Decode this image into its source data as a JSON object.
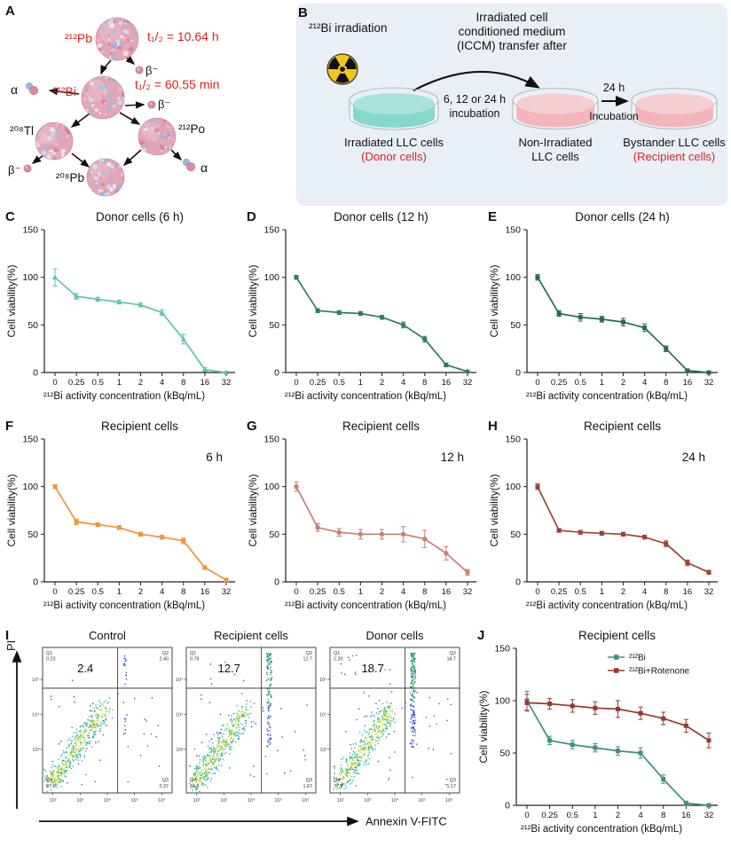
{
  "panelA": {
    "label": "A",
    "pb212": "²¹²Pb",
    "pb212_half_life": "t₁/₂ = 10.64 h",
    "bi212": "²¹²Bi",
    "bi212_half_life": "t₁/₂ = 60.55 min",
    "tl208": "²⁰⁸Tl",
    "po212": "²¹²Po",
    "pb208": "²⁰⁸Pb",
    "alpha": "α",
    "beta": "β⁻"
  },
  "panelB": {
    "label": "B",
    "irradiation_label": "²¹²Bi irradiation",
    "transfer_line1": "Irradiated cell",
    "transfer_line2": "conditioned medium",
    "transfer_line3": "(ICCM) transfer after",
    "incubation_line1": "6, 12 or 24 h",
    "incubation_line2": "incubation",
    "arrow2_label_top": "24 h",
    "arrow2_label_bottom": "Incubation",
    "dish1_caption": "Irradiated LLC cells",
    "dish1_subcaption": "(Donor cells)",
    "dish2_caption": "Non-Irradiated",
    "dish2_subcaption": "LLC cells",
    "dish3_caption": "Bystander LLC cells",
    "dish3_subcaption": "(Recipient cells)",
    "caption_accent_color": "#e31e1e"
  },
  "chart_data": [
    {
      "panel": "C",
      "type": "line",
      "title": "Donor cells (6 h)",
      "color": "#5cc6ae",
      "marker": "triangle",
      "categories": [
        "0",
        "0.25",
        "0.5",
        "1",
        "2",
        "4",
        "8",
        "16",
        "32"
      ],
      "values": [
        100,
        80,
        77,
        74,
        71,
        63,
        35,
        3,
        0
      ],
      "errors": [
        9,
        3,
        2,
        2,
        2,
        3,
        5,
        2,
        1
      ],
      "xlabel": "²¹²Bi activity concentration (kBq/mL)",
      "ylabel": "Cell viability(%)",
      "ylim": [
        0,
        150
      ],
      "yticks": [
        0,
        50,
        100,
        150
      ]
    },
    {
      "panel": "D",
      "type": "line",
      "title": "Donor cells (12 h)",
      "color": "#2e7d5c",
      "marker": "circle",
      "categories": [
        "0",
        "0.25",
        "0.5",
        "1",
        "2",
        "4",
        "8",
        "16",
        "32"
      ],
      "values": [
        100,
        65,
        63,
        62,
        58,
        50,
        35,
        8,
        1
      ],
      "errors": [
        2,
        2,
        2,
        2,
        2,
        3,
        3,
        2,
        1
      ],
      "xlabel": "²¹²Bi activity concentration (kBq/mL)",
      "ylabel": "Cell viability(%)",
      "ylim": [
        0,
        150
      ],
      "yticks": [
        0,
        50,
        100,
        150
      ]
    },
    {
      "panel": "E",
      "type": "line",
      "title": "Donor cells (24 h)",
      "color": "#256b4e",
      "marker": "square",
      "categories": [
        "0",
        "0.25",
        "0.5",
        "1",
        "2",
        "4",
        "8",
        "16",
        "32"
      ],
      "values": [
        100,
        62,
        58,
        56,
        53,
        47,
        25,
        2,
        0
      ],
      "errors": [
        3,
        3,
        4,
        3,
        4,
        4,
        3,
        1,
        1
      ],
      "xlabel": "²¹²Bi activity concentration (kBq/mL)",
      "ylabel": "Cell viability(%)",
      "ylim": [
        0,
        150
      ],
      "yticks": [
        0,
        50,
        100,
        150
      ]
    },
    {
      "panel": "F",
      "type": "line",
      "title": "Recipient cells",
      "annotation": "6 h",
      "color": "#f0953c",
      "marker": "square",
      "categories": [
        "0",
        "0.25",
        "0.5",
        "1",
        "2",
        "4",
        "8",
        "16",
        "32"
      ],
      "values": [
        100,
        63,
        60,
        57,
        50,
        47,
        43,
        15,
        2
      ],
      "errors": [
        2,
        3,
        2,
        2,
        2,
        2,
        3,
        2,
        1
      ],
      "xlabel": "²¹²Bi activity concentration (kBq/mL)",
      "ylabel": "Cell viability(%)",
      "ylim": [
        0,
        150
      ],
      "yticks": [
        0,
        50,
        100,
        150
      ]
    },
    {
      "panel": "G",
      "type": "line",
      "title": "Recipient cells",
      "annotation": "12 h",
      "color": "#c87f73",
      "marker": "circle",
      "categories": [
        "0",
        "0.25",
        "0.5",
        "1",
        "2",
        "4",
        "8",
        "16",
        "32"
      ],
      "values": [
        100,
        57,
        52,
        50,
        50,
        50,
        45,
        30,
        10
      ],
      "errors": [
        5,
        4,
        4,
        5,
        5,
        8,
        9,
        7,
        3
      ],
      "xlabel": "²¹²Bi activity concentration (kBq/mL)",
      "ylabel": "Cell viability(%)",
      "ylim": [
        0,
        150
      ],
      "yticks": [
        0,
        50,
        100,
        150
      ]
    },
    {
      "panel": "H",
      "type": "line",
      "title": "Recipient cells",
      "annotation": "24 h",
      "color": "#9e4338",
      "marker": "square",
      "categories": [
        "0",
        "0.25",
        "0.5",
        "1",
        "2",
        "4",
        "8",
        "16",
        "32"
      ],
      "values": [
        100,
        54,
        52,
        51,
        50,
        47,
        40,
        20,
        10
      ],
      "errors": [
        3,
        2,
        2,
        2,
        2,
        2,
        3,
        3,
        2
      ],
      "xlabel": "²¹²Bi activity concentration (kBq/mL)",
      "ylabel": "Cell viability(%)",
      "ylim": [
        0,
        150
      ],
      "yticks": [
        0,
        50,
        100,
        150
      ]
    },
    {
      "panel": "J",
      "type": "line",
      "title": "Recipient cells",
      "categories": [
        "0",
        "0.25",
        "0.5",
        "1",
        "2",
        "4",
        "8",
        "16",
        "32"
      ],
      "series": [
        {
          "name": "²¹²Bi",
          "color": "#418f7e",
          "marker": "square",
          "values": [
            100,
            62,
            58,
            55,
            52,
            50,
            25,
            2,
            0
          ],
          "errors": [
            9,
            4,
            4,
            4,
            4,
            5,
            4,
            2,
            1
          ]
        },
        {
          "name": "²¹²Bi+Rotenone",
          "color": "#963a30",
          "marker": "square",
          "values": [
            98,
            97,
            95,
            93,
            92,
            88,
            83,
            76,
            62
          ],
          "errors": [
            8,
            5,
            6,
            6,
            8,
            6,
            6,
            6,
            7
          ]
        }
      ],
      "xlabel": "²¹²Bi activity concentration (kBq/mL)",
      "ylabel": "Cell viability(%)",
      "ylim": [
        0,
        150
      ],
      "yticks": [
        0,
        50,
        100,
        150
      ]
    }
  ],
  "flow": {
    "label": "I",
    "ylabel": "PI",
    "xlabel": "Annexin V-FITC",
    "x_ticks": [
      "10²",
      "10³",
      "10⁴",
      "10⁵",
      "10⁶"
    ],
    "y_ticks": [
      "10⁵",
      "10⁴",
      "10³"
    ],
    "quadrant_names": [
      "Q1",
      "Q2",
      "Q3",
      "Q4"
    ],
    "plots": [
      {
        "title": "Control",
        "apoptosis_value": "2.4",
        "q1": "0.23",
        "q2": "2.40",
        "q3": "0.37",
        "q4": "97.0"
      },
      {
        "title": "Recipient cells",
        "apoptosis_value": "12.7",
        "q1": "0.78",
        "q2": "12.7",
        "q3": "1.67",
        "q4": "84.8"
      },
      {
        "title": "Donor cells",
        "apoptosis_value": "18.7",
        "q1": "2.20",
        "q2": "18.7",
        "q3": "1.17",
        "q4": "77.9"
      }
    ]
  }
}
